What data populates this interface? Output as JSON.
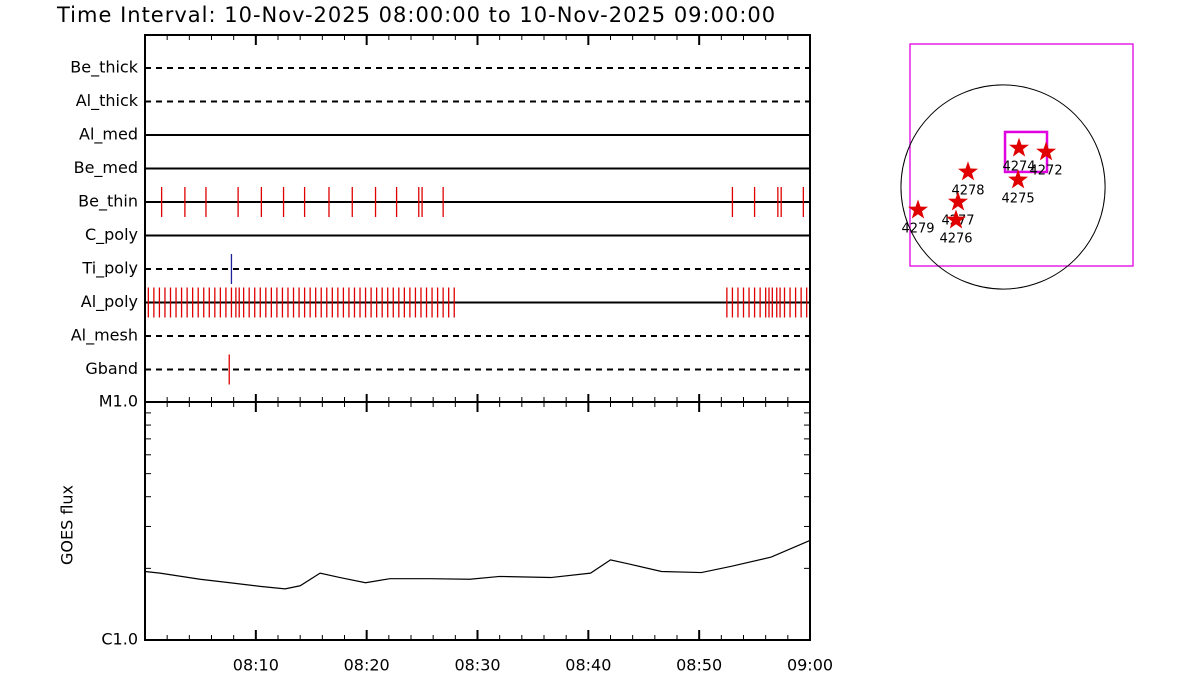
{
  "chart_data": [
    {
      "type": "event",
      "title": "Time Interval: 10-Nov-2025 08:00:00 to 10-Nov-2025 09:00:00",
      "xlim": [
        0,
        60
      ],
      "rows": [
        {
          "name": "Be_thick",
          "style": "dashed",
          "color": "#e00000",
          "events": []
        },
        {
          "name": "Al_thick",
          "style": "dashed",
          "color": "#e00000",
          "events": []
        },
        {
          "name": "Al_med",
          "style": "solid",
          "color": "#e00000",
          "events": []
        },
        {
          "name": "Be_med",
          "style": "solid",
          "color": "#e00000",
          "events": []
        },
        {
          "name": "Be_thin",
          "style": "solid",
          "color": "#e00000",
          "events": [
            1.5,
            3.6,
            5.5,
            8.4,
            10.5,
            12.5,
            14.4,
            16.6,
            18.7,
            20.8,
            22.7,
            24.7,
            25.0,
            26.9,
            53.0,
            55.0,
            57.1,
            57.4,
            59.4
          ]
        },
        {
          "name": "C_poly",
          "style": "solid",
          "color": "#e00000",
          "events": []
        },
        {
          "name": "Ti_poly",
          "style": "dashed",
          "color": "#2020a0",
          "events": [
            7.8
          ]
        },
        {
          "name": "Al_poly",
          "style": "solid",
          "color": "#e00000",
          "events": [
            0.3,
            0.8,
            1.3,
            1.8,
            2.3,
            2.8,
            3.3,
            3.8,
            4.3,
            4.8,
            5.3,
            5.8,
            6.3,
            6.8,
            7.3,
            7.8,
            8.2,
            8.5,
            8.9,
            9.4,
            9.9,
            10.4,
            10.9,
            11.4,
            11.9,
            12.4,
            12.9,
            13.4,
            13.9,
            14.4,
            14.9,
            15.4,
            15.9,
            16.4,
            16.9,
            17.4,
            17.9,
            18.4,
            18.9,
            19.4,
            19.9,
            20.4,
            20.9,
            21.4,
            21.9,
            22.4,
            22.9,
            23.4,
            23.9,
            24.4,
            24.9,
            25.4,
            25.9,
            26.4,
            26.9,
            27.4,
            27.9,
            52.5,
            53.0,
            53.5,
            54.0,
            54.5,
            55.0,
            55.5,
            56.0,
            56.3,
            56.6,
            57.0,
            57.3,
            57.7,
            58.2,
            58.7,
            59.2,
            59.7
          ]
        },
        {
          "name": "Al_mesh",
          "style": "dashed",
          "color": "#e00000",
          "events": []
        },
        {
          "name": "Gband",
          "style": "dashed",
          "color": "#e00000",
          "events": [
            7.6
          ]
        }
      ]
    },
    {
      "type": "line",
      "ylabel": "GOES flux",
      "log_y": true,
      "color": "#000000",
      "x": [
        0,
        1.35,
        4.96,
        7.67,
        10.38,
        12.64,
        14.0,
        15.8,
        17.6,
        19.9,
        22.1,
        25.7,
        29.3,
        32.0,
        36.6,
        40.2,
        42.0,
        43.8,
        46.6,
        50.2,
        52.9,
        56.5,
        60
      ],
      "values": [
        1.94e-06,
        1.91e-06,
        1.8e-06,
        1.74e-06,
        1.68e-06,
        1.64e-06,
        1.69e-06,
        1.91e-06,
        1.83e-06,
        1.74e-06,
        1.81e-06,
        1.81e-06,
        1.8e-06,
        1.85e-06,
        1.83e-06,
        1.91e-06,
        2.17e-06,
        2.08e-06,
        1.94e-06,
        1.92e-06,
        2.04e-06,
        2.23e-06,
        2.62e-06
      ],
      "xlim": [
        0,
        60
      ],
      "xticks": [
        {
          "value": 10,
          "label": "08:10"
        },
        {
          "value": 20,
          "label": "08:20"
        },
        {
          "value": 30,
          "label": "08:30"
        },
        {
          "value": 40,
          "label": "08:40"
        },
        {
          "value": 50,
          "label": "08:50"
        },
        {
          "value": 60,
          "label": "09:00"
        }
      ],
      "xminorticks": [
        2,
        4,
        6,
        8,
        12,
        14,
        16,
        18,
        22,
        24,
        26,
        28,
        32,
        34,
        36,
        38,
        42,
        44,
        46,
        48,
        52,
        54,
        56,
        58
      ],
      "ylim": [
        1e-06,
        1e-05
      ],
      "yticks": [
        {
          "value": 1e-06,
          "label": "C1.0"
        },
        {
          "value": 1e-05,
          "label": "M1.0"
        }
      ],
      "yminorticks": [
        2e-06,
        3e-06,
        4e-06,
        5e-06,
        6e-06,
        7e-06,
        8e-06,
        9e-06
      ]
    },
    {
      "type": "scatter",
      "xlim": [
        -884,
        1235
      ],
      "ylim": [
        -751,
        1359
      ],
      "sun_radius": 970,
      "box_color": "#e000e0",
      "star_color": "#e00000",
      "box": {
        "x": [
          19,
          418
        ],
        "y": [
          143,
          523
        ]
      },
      "points": [
        {
          "label": "4274",
          "x": 152,
          "y": 370
        },
        {
          "label": "4272",
          "x": 409,
          "y": 333
        },
        {
          "label": "4278",
          "x": -333,
          "y": 143
        },
        {
          "label": "4275",
          "x": 143,
          "y": 67
        },
        {
          "label": "4277",
          "x": -428,
          "y": -143
        },
        {
          "label": "4279",
          "x": -808,
          "y": -219
        },
        {
          "label": "4276",
          "x": -447,
          "y": -314
        }
      ]
    }
  ]
}
